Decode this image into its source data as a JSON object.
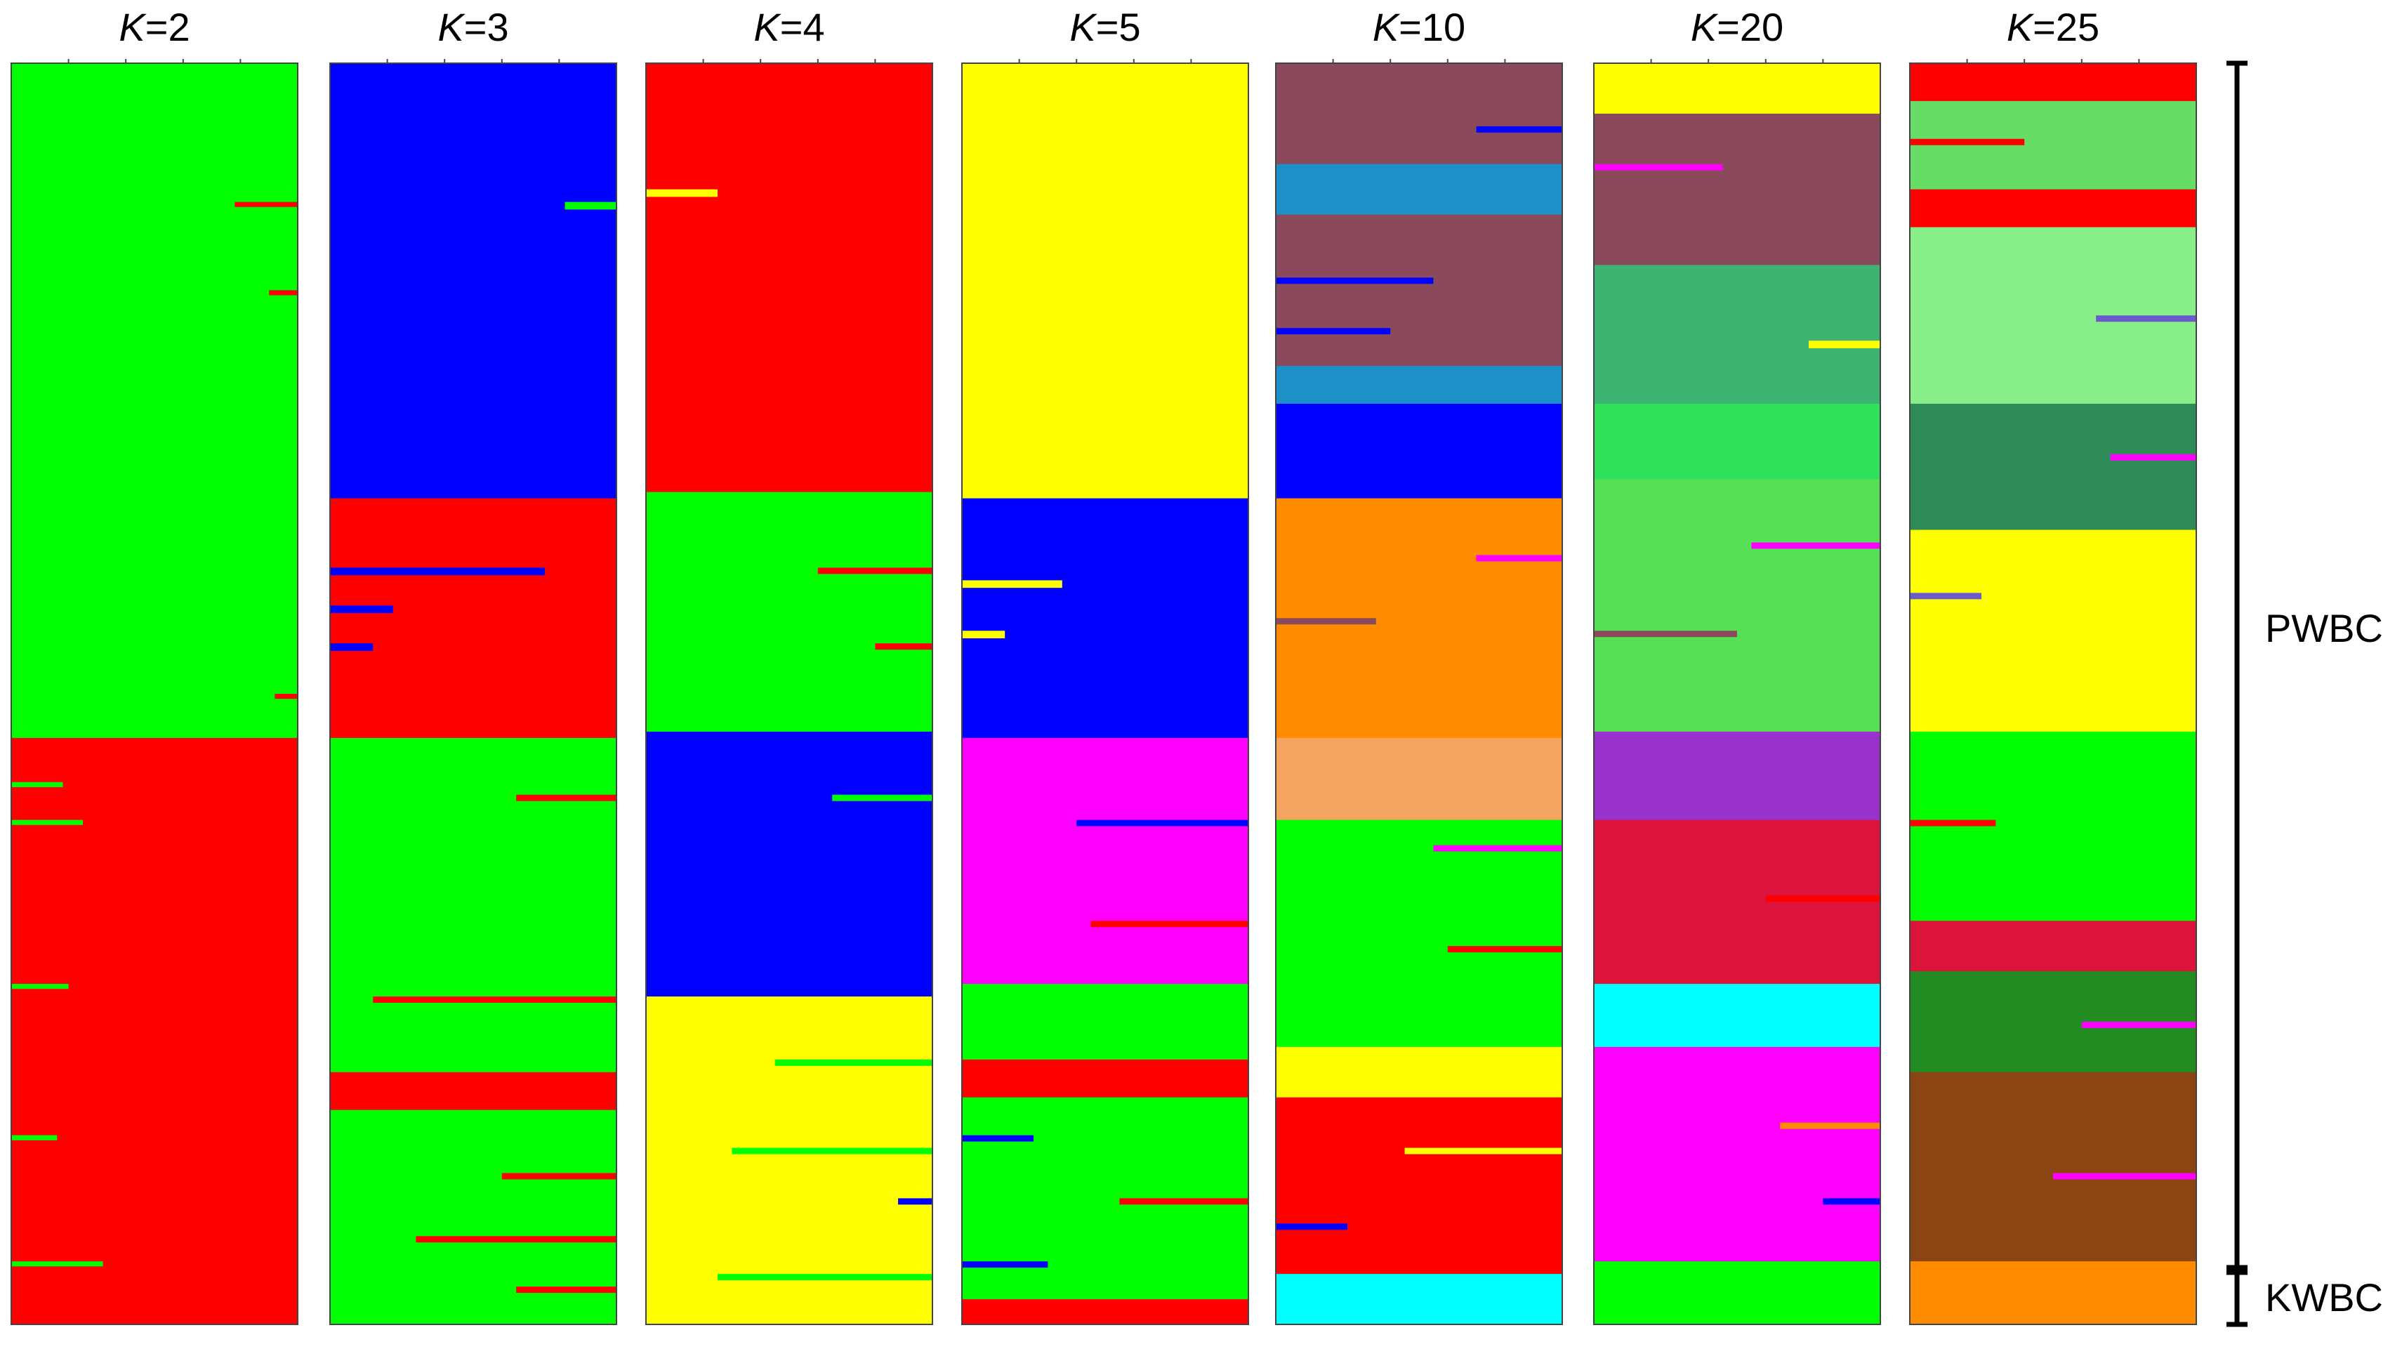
{
  "chart_data": {
    "type": "bar",
    "orientation": "horizontal-stacked",
    "description_of_axes": "Each panel shows admixture proportions (0 to 1) per individual; individuals stacked vertically",
    "ylim": [
      0,
      1
    ],
    "groups": [
      {
        "label": "PWBC"
      },
      {
        "label": "KWBC"
      }
    ],
    "panels": [
      {
        "k_label": "K",
        "k_value": "=2",
        "k": 2,
        "segments": [
          {
            "color": "#00ff00",
            "from": 0.0,
            "to": 0.535
          },
          {
            "color": "#ff0000",
            "from": 0.535,
            "to": 1.0
          }
        ],
        "intrusions": [
          {
            "at": 0.11,
            "thickness": 0.004,
            "color": "#ff0000",
            "side": "right",
            "width": 0.22
          },
          {
            "at": 0.18,
            "thickness": 0.004,
            "color": "#ff0000",
            "side": "right",
            "width": 0.1
          },
          {
            "at": 0.5,
            "thickness": 0.004,
            "color": "#ff0000",
            "side": "right",
            "width": 0.08
          },
          {
            "at": 0.57,
            "thickness": 0.004,
            "color": "#00ff00",
            "side": "left",
            "width": 0.18
          },
          {
            "at": 0.6,
            "thickness": 0.004,
            "color": "#00ff00",
            "side": "left",
            "width": 0.25
          },
          {
            "at": 0.73,
            "thickness": 0.004,
            "color": "#00ff00",
            "side": "left",
            "width": 0.2
          },
          {
            "at": 0.85,
            "thickness": 0.004,
            "color": "#00ff00",
            "side": "left",
            "width": 0.16
          },
          {
            "at": 0.95,
            "thickness": 0.004,
            "color": "#00ff00",
            "side": "left",
            "width": 0.32
          }
        ]
      },
      {
        "k_label": "K",
        "k_value": "=3",
        "k": 3,
        "segments": [
          {
            "color": "#0000ff",
            "from": 0.0,
            "to": 0.345
          },
          {
            "color": "#ff0000",
            "from": 0.345,
            "to": 0.535
          },
          {
            "color": "#00ff00",
            "from": 0.535,
            "to": 0.8
          },
          {
            "color": "#ff0000",
            "from": 0.8,
            "to": 0.83
          },
          {
            "color": "#00ff00",
            "from": 0.83,
            "to": 1.0
          }
        ],
        "intrusions": [
          {
            "at": 0.11,
            "thickness": 0.006,
            "color": "#00ff00",
            "side": "right",
            "width": 0.18
          },
          {
            "at": 0.4,
            "thickness": 0.006,
            "color": "#0000ff",
            "side": "left",
            "width": 0.75
          },
          {
            "at": 0.43,
            "thickness": 0.006,
            "color": "#0000ff",
            "side": "left",
            "width": 0.22
          },
          {
            "at": 0.46,
            "thickness": 0.006,
            "color": "#0000ff",
            "side": "left",
            "width": 0.15
          },
          {
            "at": 0.58,
            "thickness": 0.005,
            "color": "#ff0000",
            "side": "right",
            "width": 0.35
          },
          {
            "at": 0.74,
            "thickness": 0.005,
            "color": "#ff0000",
            "side": "right",
            "width": 0.85
          },
          {
            "at": 0.88,
            "thickness": 0.005,
            "color": "#ff0000",
            "side": "right",
            "width": 0.4
          },
          {
            "at": 0.93,
            "thickness": 0.005,
            "color": "#ff0000",
            "side": "right",
            "width": 0.7
          },
          {
            "at": 0.97,
            "thickness": 0.005,
            "color": "#ff0000",
            "side": "right",
            "width": 0.35
          }
        ]
      },
      {
        "k_label": "K",
        "k_value": "=4",
        "k": 4,
        "segments": [
          {
            "color": "#ff0000",
            "from": 0.0,
            "to": 0.34
          },
          {
            "color": "#00ff00",
            "from": 0.34,
            "to": 0.53
          },
          {
            "color": "#0000ff",
            "from": 0.53,
            "to": 0.74
          },
          {
            "color": "#ffff00",
            "from": 0.74,
            "to": 1.0
          }
        ],
        "intrusions": [
          {
            "at": 0.1,
            "thickness": 0.006,
            "color": "#ffff00",
            "side": "left",
            "width": 0.25
          },
          {
            "at": 0.4,
            "thickness": 0.005,
            "color": "#ff0000",
            "side": "right",
            "width": 0.4
          },
          {
            "at": 0.46,
            "thickness": 0.005,
            "color": "#ff0000",
            "side": "right",
            "width": 0.2
          },
          {
            "at": 0.58,
            "thickness": 0.005,
            "color": "#00ff00",
            "side": "right",
            "width": 0.35
          },
          {
            "at": 0.79,
            "thickness": 0.005,
            "color": "#00ff00",
            "side": "right",
            "width": 0.55
          },
          {
            "at": 0.86,
            "thickness": 0.005,
            "color": "#00ff00",
            "side": "right",
            "width": 0.7
          },
          {
            "at": 0.9,
            "thickness": 0.005,
            "color": "#0000ff",
            "side": "right",
            "width": 0.12
          },
          {
            "at": 0.96,
            "thickness": 0.005,
            "color": "#00ff00",
            "side": "right",
            "width": 0.75
          }
        ]
      },
      {
        "k_label": "K",
        "k_value": "=5",
        "k": 5,
        "segments": [
          {
            "color": "#ffff00",
            "from": 0.0,
            "to": 0.345
          },
          {
            "color": "#0000ff",
            "from": 0.345,
            "to": 0.535
          },
          {
            "color": "#ff00ff",
            "from": 0.535,
            "to": 0.73
          },
          {
            "color": "#00ff00",
            "from": 0.73,
            "to": 0.79
          },
          {
            "color": "#ff0000",
            "from": 0.79,
            "to": 0.82
          },
          {
            "color": "#00ff00",
            "from": 0.82,
            "to": 0.98
          },
          {
            "color": "#ff0000",
            "from": 0.98,
            "to": 1.0
          }
        ],
        "intrusions": [
          {
            "at": 0.41,
            "thickness": 0.006,
            "color": "#ffff00",
            "side": "left",
            "width": 0.35
          },
          {
            "at": 0.45,
            "thickness": 0.006,
            "color": "#ffff00",
            "side": "left",
            "width": 0.15
          },
          {
            "at": 0.6,
            "thickness": 0.005,
            "color": "#0000ff",
            "side": "right",
            "width": 0.6
          },
          {
            "at": 0.68,
            "thickness": 0.005,
            "color": "#ff0000",
            "side": "right",
            "width": 0.55
          },
          {
            "at": 0.85,
            "thickness": 0.005,
            "color": "#0000ff",
            "side": "left",
            "width": 0.25
          },
          {
            "at": 0.9,
            "thickness": 0.005,
            "color": "#ff0000",
            "side": "right",
            "width": 0.45
          },
          {
            "at": 0.95,
            "thickness": 0.005,
            "color": "#0000ff",
            "side": "left",
            "width": 0.3
          }
        ]
      },
      {
        "k_label": "K",
        "k_value": "=10",
        "k": 10,
        "segments": [
          {
            "color": "#8b4a5c",
            "from": 0.0,
            "to": 0.08
          },
          {
            "color": "#1e90c8",
            "from": 0.08,
            "to": 0.12
          },
          {
            "color": "#8b4a5c",
            "from": 0.12,
            "to": 0.24
          },
          {
            "color": "#1e90c8",
            "from": 0.24,
            "to": 0.27
          },
          {
            "color": "#0000ff",
            "from": 0.27,
            "to": 0.345
          },
          {
            "color": "#ff8c00",
            "from": 0.345,
            "to": 0.535
          },
          {
            "color": "#f4a460",
            "from": 0.535,
            "to": 0.6
          },
          {
            "color": "#00ff00",
            "from": 0.6,
            "to": 0.78
          },
          {
            "color": "#ffff00",
            "from": 0.78,
            "to": 0.82
          },
          {
            "color": "#ff0000",
            "from": 0.82,
            "to": 0.96
          },
          {
            "color": "#00ffff",
            "from": 0.96,
            "to": 1.0
          }
        ],
        "intrusions": [
          {
            "at": 0.05,
            "thickness": 0.005,
            "color": "#0000ff",
            "side": "right",
            "width": 0.3
          },
          {
            "at": 0.17,
            "thickness": 0.005,
            "color": "#0000ff",
            "side": "left",
            "width": 0.55
          },
          {
            "at": 0.21,
            "thickness": 0.005,
            "color": "#0000ff",
            "side": "left",
            "width": 0.4
          },
          {
            "at": 0.39,
            "thickness": 0.005,
            "color": "#ff00ff",
            "side": "right",
            "width": 0.3
          },
          {
            "at": 0.44,
            "thickness": 0.005,
            "color": "#8b4a5c",
            "side": "left",
            "width": 0.35
          },
          {
            "at": 0.62,
            "thickness": 0.005,
            "color": "#ff00ff",
            "side": "right",
            "width": 0.45
          },
          {
            "at": 0.7,
            "thickness": 0.005,
            "color": "#ff0000",
            "side": "right",
            "width": 0.4
          },
          {
            "at": 0.86,
            "thickness": 0.005,
            "color": "#ffff00",
            "side": "right",
            "width": 0.55
          },
          {
            "at": 0.92,
            "thickness": 0.005,
            "color": "#0000ff",
            "side": "left",
            "width": 0.25
          }
        ]
      },
      {
        "k_label": "K",
        "k_value": "=20",
        "k": 20,
        "segments": [
          {
            "color": "#ffff00",
            "from": 0.0,
            "to": 0.04
          },
          {
            "color": "#8b4a5c",
            "from": 0.04,
            "to": 0.16
          },
          {
            "color": "#3cb371",
            "from": 0.16,
            "to": 0.27
          },
          {
            "color": "#2ee05a",
            "from": 0.27,
            "to": 0.33
          },
          {
            "color": "#55e055",
            "from": 0.33,
            "to": 0.53
          },
          {
            "color": "#9932cc",
            "from": 0.53,
            "to": 0.6
          },
          {
            "color": "#dc143c",
            "from": 0.6,
            "to": 0.73
          },
          {
            "color": "#00ffff",
            "from": 0.73,
            "to": 0.78
          },
          {
            "color": "#ff00ff",
            "from": 0.78,
            "to": 0.95
          },
          {
            "color": "#00ff00",
            "from": 0.95,
            "to": 1.0
          }
        ],
        "intrusions": [
          {
            "at": 0.08,
            "thickness": 0.005,
            "color": "#ff00ff",
            "side": "left",
            "width": 0.45
          },
          {
            "at": 0.22,
            "thickness": 0.006,
            "color": "#ffff00",
            "side": "right",
            "width": 0.25
          },
          {
            "at": 0.38,
            "thickness": 0.005,
            "color": "#ff00ff",
            "side": "right",
            "width": 0.45
          },
          {
            "at": 0.45,
            "thickness": 0.005,
            "color": "#8b4a5c",
            "side": "left",
            "width": 0.5
          },
          {
            "at": 0.66,
            "thickness": 0.005,
            "color": "#ff0000",
            "side": "right",
            "width": 0.4
          },
          {
            "at": 0.84,
            "thickness": 0.005,
            "color": "#ff8c00",
            "side": "right",
            "width": 0.35
          },
          {
            "at": 0.9,
            "thickness": 0.005,
            "color": "#0000ff",
            "side": "right",
            "width": 0.2
          }
        ]
      },
      {
        "k_label": "K",
        "k_value": "=25",
        "k": 25,
        "segments": [
          {
            "color": "#ff0000",
            "from": 0.0,
            "to": 0.03
          },
          {
            "color": "#66dd66",
            "from": 0.03,
            "to": 0.1
          },
          {
            "color": "#ff0000",
            "from": 0.1,
            "to": 0.13
          },
          {
            "color": "#88ee88",
            "from": 0.13,
            "to": 0.27
          },
          {
            "color": "#2e8b57",
            "from": 0.27,
            "to": 0.37
          },
          {
            "color": "#ffff00",
            "from": 0.37,
            "to": 0.53
          },
          {
            "color": "#00ff00",
            "from": 0.53,
            "to": 0.68
          },
          {
            "color": "#dc143c",
            "from": 0.68,
            "to": 0.72
          },
          {
            "color": "#228b22",
            "from": 0.72,
            "to": 0.8
          },
          {
            "color": "#8b4513",
            "from": 0.8,
            "to": 0.95
          },
          {
            "color": "#ff8c00",
            "from": 0.95,
            "to": 1.0
          }
        ],
        "intrusions": [
          {
            "at": 0.06,
            "thickness": 0.005,
            "color": "#ff0000",
            "side": "left",
            "width": 0.4
          },
          {
            "at": 0.2,
            "thickness": 0.005,
            "color": "#6a5acd",
            "side": "right",
            "width": 0.35
          },
          {
            "at": 0.31,
            "thickness": 0.005,
            "color": "#ff00ff",
            "side": "right",
            "width": 0.3
          },
          {
            "at": 0.42,
            "thickness": 0.005,
            "color": "#6a5acd",
            "side": "left",
            "width": 0.25
          },
          {
            "at": 0.6,
            "thickness": 0.005,
            "color": "#ff0000",
            "side": "left",
            "width": 0.3
          },
          {
            "at": 0.76,
            "thickness": 0.005,
            "color": "#ff00ff",
            "side": "right",
            "width": 0.4
          },
          {
            "at": 0.88,
            "thickness": 0.005,
            "color": "#ff00ff",
            "side": "right",
            "width": 0.5
          }
        ]
      }
    ]
  }
}
